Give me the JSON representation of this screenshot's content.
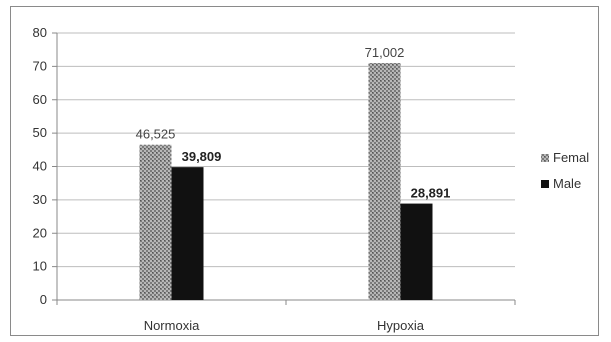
{
  "chart_data": {
    "type": "bar",
    "categories": [
      "Normoxia",
      "Hypoxia"
    ],
    "series": [
      {
        "name": "Femal",
        "values": [
          46.525,
          71.002
        ],
        "labels": [
          "46,525",
          "71,002"
        ],
        "label_bold": false,
        "color": "#9a9a9a",
        "pattern": "crosshatch"
      },
      {
        "name": "Male",
        "values": [
          39.809,
          28.891
        ],
        "labels": [
          "39,809",
          "28,891"
        ],
        "label_bold": true,
        "color": "#111111",
        "pattern": "solid"
      }
    ],
    "ylim": [
      0,
      80
    ],
    "yticks": [
      "0",
      "10",
      "20",
      "30",
      "40",
      "50",
      "60",
      "70",
      "80"
    ],
    "grid": true,
    "legend_position": "right"
  }
}
